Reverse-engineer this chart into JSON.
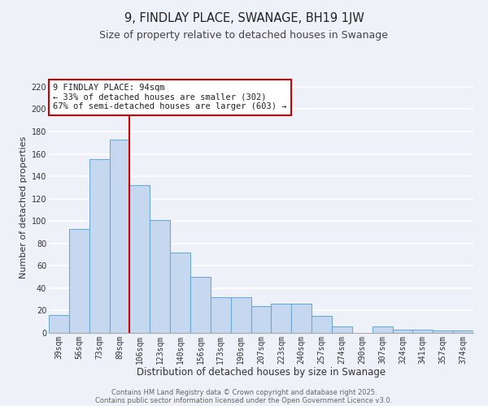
{
  "title": "9, FINDLAY PLACE, SWANAGE, BH19 1JW",
  "subtitle": "Size of property relative to detached houses in Swanage",
  "xlabel": "Distribution of detached houses by size in Swanage",
  "ylabel": "Number of detached properties",
  "categories": [
    "39sqm",
    "56sqm",
    "73sqm",
    "89sqm",
    "106sqm",
    "123sqm",
    "140sqm",
    "156sqm",
    "173sqm",
    "190sqm",
    "207sqm",
    "223sqm",
    "240sqm",
    "257sqm",
    "274sqm",
    "290sqm",
    "307sqm",
    "324sqm",
    "341sqm",
    "357sqm",
    "374sqm"
  ],
  "values": [
    16,
    93,
    155,
    173,
    132,
    101,
    72,
    50,
    32,
    32,
    24,
    26,
    26,
    15,
    6,
    0,
    6,
    3,
    3,
    2,
    2
  ],
  "bar_color": "#c5d8f0",
  "bar_edge_color": "#6aaad4",
  "bar_width": 1.0,
  "vline_color": "#cc0000",
  "annotation_title": "9 FINDLAY PLACE: 94sqm",
  "annotation_line1": "← 33% of detached houses are smaller (302)",
  "annotation_line2": "67% of semi-detached houses are larger (603) →",
  "annotation_box_color": "#ffffff",
  "annotation_box_edge": "#cc0000",
  "ylim": [
    0,
    225
  ],
  "yticks": [
    0,
    20,
    40,
    60,
    80,
    100,
    120,
    140,
    160,
    180,
    200,
    220
  ],
  "bg_color": "#eef2f8",
  "grid_color": "#ffffff",
  "footer1": "Contains HM Land Registry data © Crown copyright and database right 2025.",
  "footer2": "Contains public sector information licensed under the Open Government Licence v3.0.",
  "title_fontsize": 10.5,
  "subtitle_fontsize": 9,
  "xlabel_fontsize": 8.5,
  "ylabel_fontsize": 8,
  "tick_fontsize": 7,
  "annotation_fontsize": 7.5,
  "footer_fontsize": 6
}
